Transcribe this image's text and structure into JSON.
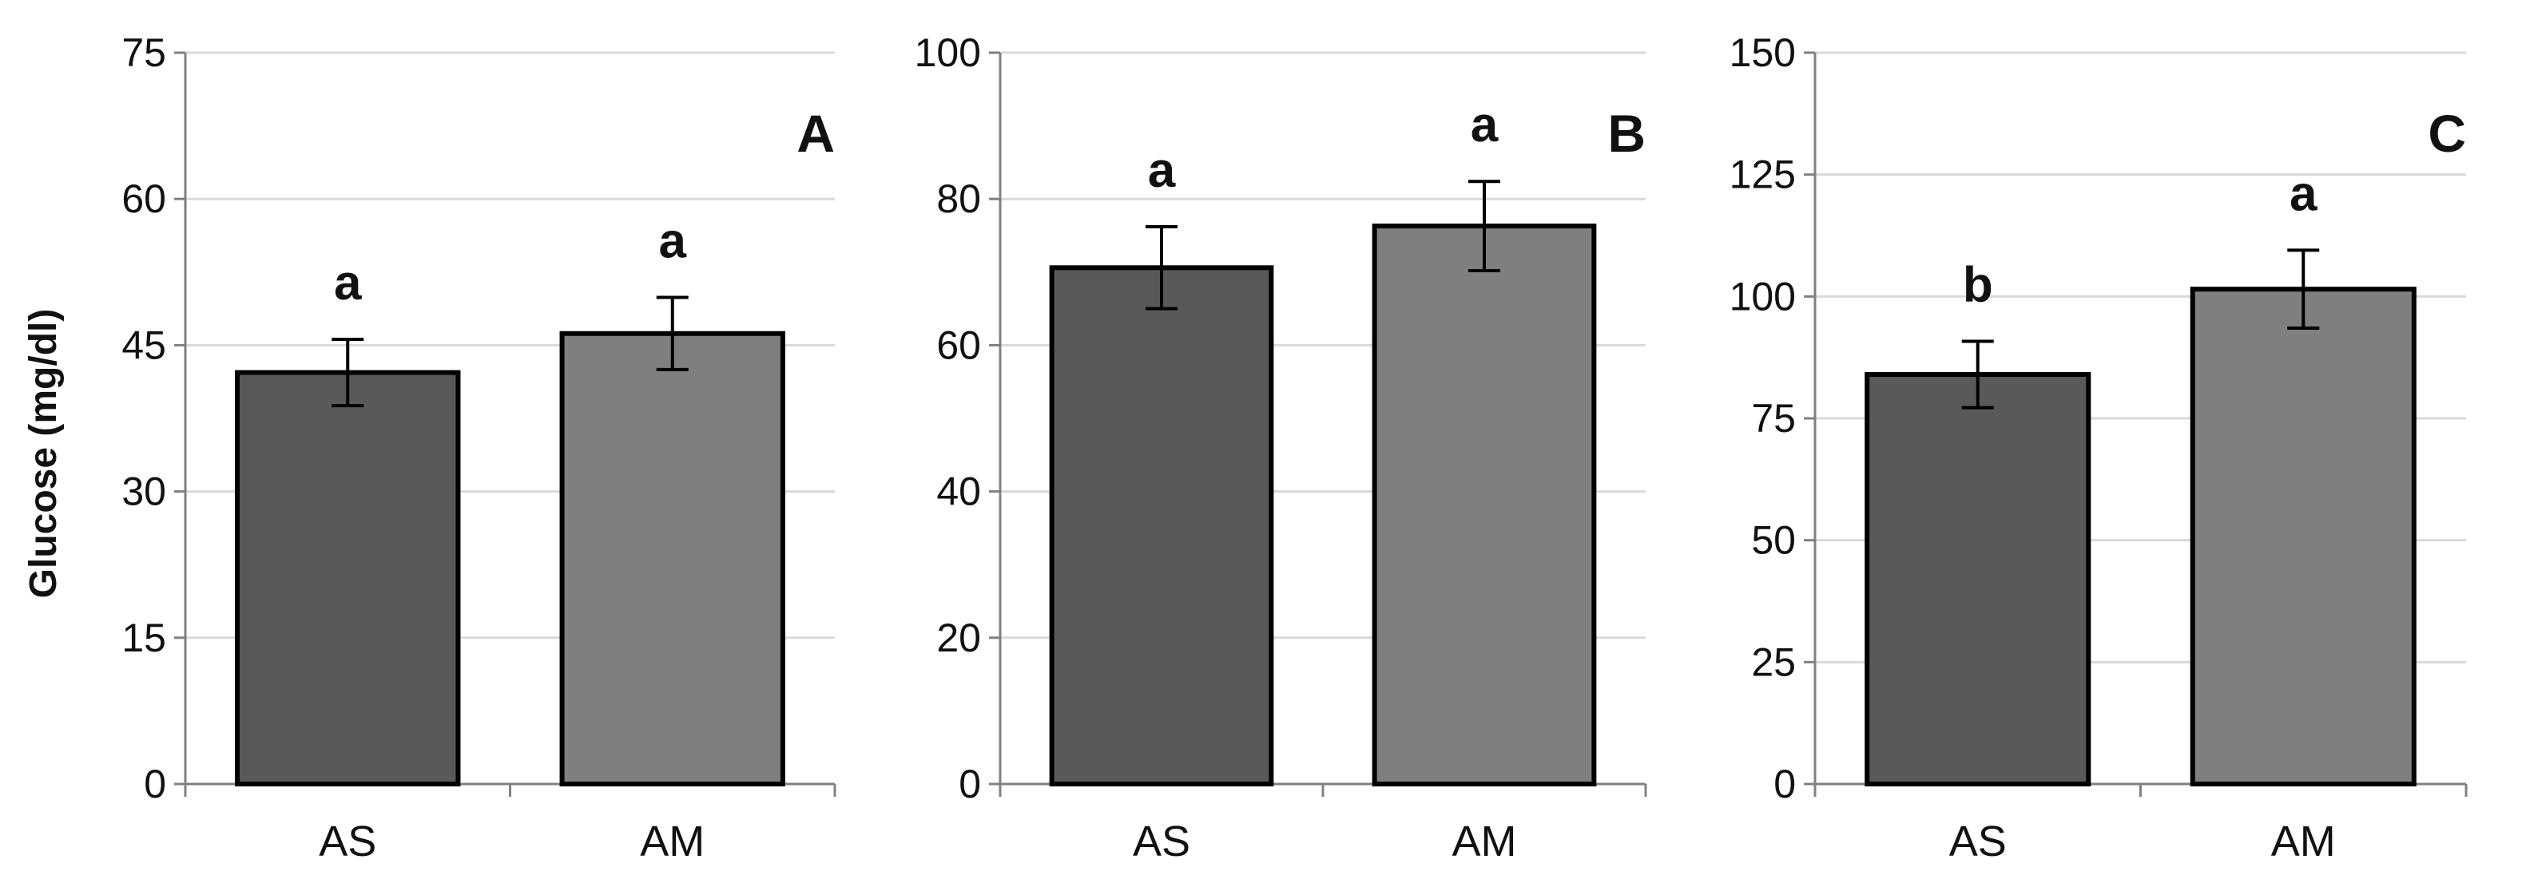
{
  "y_axis_title": "Glucose (mg/dl)",
  "colors": {
    "bar_as": "#595959",
    "bar_am": "#7f7f7f",
    "outline": "#000000",
    "grid": "#d9d9d9",
    "axis": "#808080"
  },
  "chart_data": [
    {
      "type": "bar",
      "panel_label": "A",
      "categories": [
        "AS",
        "AM"
      ],
      "values": [
        42.2,
        46.2
      ],
      "errors": [
        3.4,
        3.7
      ],
      "significance": [
        "a",
        "a"
      ],
      "ylim": [
        0,
        75
      ],
      "yticks": [
        0,
        15,
        30,
        45,
        60,
        75
      ],
      "grid": true
    },
    {
      "type": "bar",
      "panel_label": "B",
      "categories": [
        "AS",
        "AM"
      ],
      "values": [
        70.6,
        76.3
      ],
      "errors": [
        5.6,
        6.1
      ],
      "significance": [
        "a",
        "a"
      ],
      "ylim": [
        0,
        100
      ],
      "yticks": [
        0,
        20,
        40,
        60,
        80,
        100
      ],
      "grid": true
    },
    {
      "type": "bar",
      "panel_label": "C",
      "categories": [
        "AS",
        "AM"
      ],
      "values": [
        84.0,
        101.5
      ],
      "errors": [
        6.8,
        8.0
      ],
      "significance": [
        "b",
        "a"
      ],
      "ylim": [
        0,
        150
      ],
      "yticks": [
        0,
        25,
        50,
        75,
        100,
        125,
        150
      ],
      "grid": true
    }
  ]
}
